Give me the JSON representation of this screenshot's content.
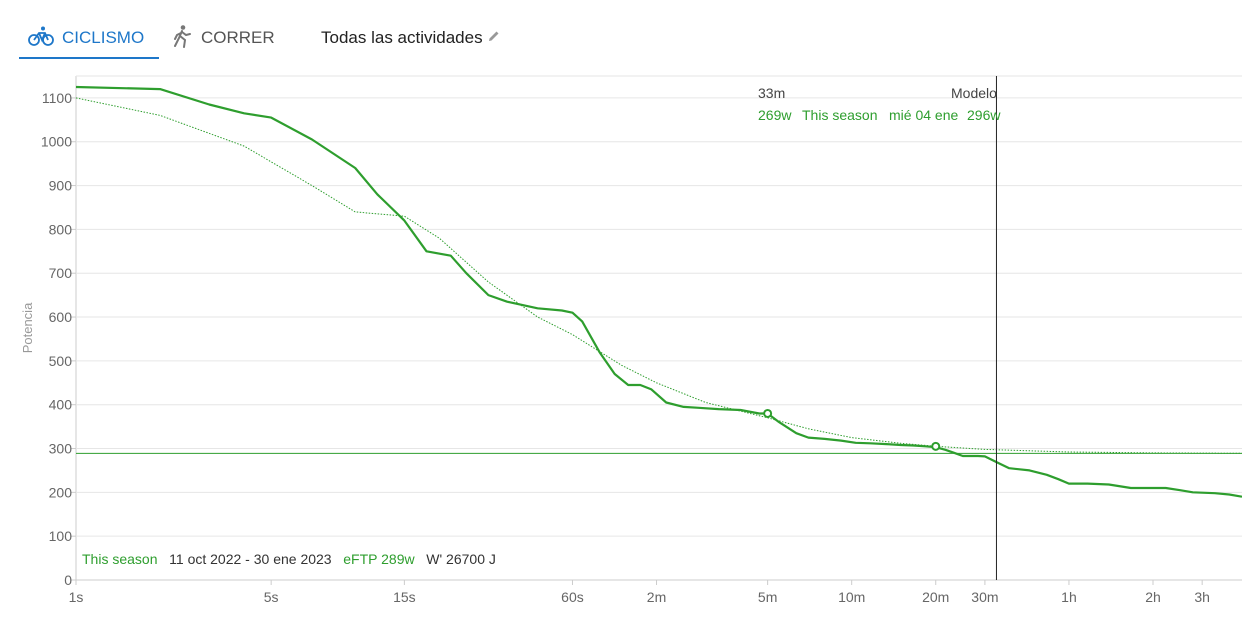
{
  "tabs": [
    {
      "label": "CICLISMO",
      "icon": "bike-icon",
      "active": true
    },
    {
      "label": "CORRER",
      "icon": "runner-icon",
      "active": false
    }
  ],
  "filter": {
    "label": "Todas las actividades",
    "icon": "pencil-icon"
  },
  "tooltip": {
    "time": "33m",
    "model_label": "Modelo",
    "value": "269w",
    "series": "This season",
    "date": "mié 04 ene",
    "model_value": "296w"
  },
  "footer": {
    "series": "This season",
    "range": "11 oct 2022 - 30 ene 2023",
    "eftp": "eFTP 289w",
    "wprime": "W' 26700 J"
  },
  "colors": {
    "accent": "#1e77c9",
    "series": "#2e9e2e",
    "grid": "#e6e6e6"
  },
  "chart_data": {
    "type": "line",
    "ylabel": "Potencia",
    "ylim": [
      0,
      1150
    ],
    "yticks": [
      0,
      100,
      200,
      300,
      400,
      500,
      600,
      700,
      800,
      900,
      1000,
      1100
    ],
    "xscale": "log",
    "xlim_seconds": [
      1,
      15000
    ],
    "xticks": [
      {
        "label": "1s",
        "s": 1
      },
      {
        "label": "5s",
        "s": 5
      },
      {
        "label": "15s",
        "s": 15
      },
      {
        "label": "60s",
        "s": 60
      },
      {
        "label": "2m",
        "s": 120
      },
      {
        "label": "5m",
        "s": 300
      },
      {
        "label": "10m",
        "s": 600
      },
      {
        "label": "20m",
        "s": 1200
      },
      {
        "label": "30m",
        "s": 1800
      },
      {
        "label": "1h",
        "s": 3600
      },
      {
        "label": "2h",
        "s": 7200
      },
      {
        "label": "3h",
        "s": 10800
      }
    ],
    "cursor_seconds": 1980,
    "eftp_line": 289,
    "series": [
      {
        "name": "This season",
        "style": "solid",
        "points": [
          [
            1,
            1125
          ],
          [
            2,
            1120
          ],
          [
            3,
            1085
          ],
          [
            4,
            1065
          ],
          [
            5,
            1055
          ],
          [
            7,
            1005
          ],
          [
            10,
            940
          ],
          [
            12,
            880
          ],
          [
            15,
            820
          ],
          [
            18,
            750
          ],
          [
            22,
            740
          ],
          [
            25,
            700
          ],
          [
            30,
            650
          ],
          [
            35,
            635
          ],
          [
            45,
            620
          ],
          [
            55,
            615
          ],
          [
            60,
            610
          ],
          [
            65,
            590
          ],
          [
            75,
            520
          ],
          [
            85,
            470
          ],
          [
            95,
            445
          ],
          [
            105,
            445
          ],
          [
            115,
            435
          ],
          [
            130,
            405
          ],
          [
            150,
            395
          ],
          [
            170,
            393
          ],
          [
            200,
            390
          ],
          [
            240,
            388
          ],
          [
            280,
            380
          ],
          [
            300,
            380
          ],
          [
            330,
            360
          ],
          [
            380,
            335
          ],
          [
            420,
            325
          ],
          [
            480,
            322
          ],
          [
            550,
            318
          ],
          [
            620,
            313
          ],
          [
            700,
            312
          ],
          [
            800,
            310
          ],
          [
            900,
            308
          ],
          [
            1000,
            307
          ],
          [
            1100,
            305
          ],
          [
            1200,
            303
          ],
          [
            1300,
            297
          ],
          [
            1400,
            290
          ],
          [
            1500,
            283
          ],
          [
            1700,
            283
          ],
          [
            1800,
            282
          ],
          [
            1980,
            269
          ],
          [
            2200,
            255
          ],
          [
            2600,
            250
          ],
          [
            3000,
            240
          ],
          [
            3300,
            230
          ],
          [
            3600,
            220
          ],
          [
            4200,
            220
          ],
          [
            5000,
            218
          ],
          [
            6000,
            210
          ],
          [
            7000,
            210
          ],
          [
            8000,
            210
          ],
          [
            9000,
            205
          ],
          [
            10000,
            200
          ],
          [
            12000,
            198
          ],
          [
            13500,
            195
          ],
          [
            15000,
            190
          ]
        ]
      },
      {
        "name": "Modelo",
        "style": "dotted",
        "points": [
          [
            1,
            1100
          ],
          [
            2,
            1060
          ],
          [
            4,
            990
          ],
          [
            7,
            900
          ],
          [
            10,
            840
          ],
          [
            15,
            830
          ],
          [
            20,
            780
          ],
          [
            30,
            680
          ],
          [
            45,
            600
          ],
          [
            60,
            560
          ],
          [
            90,
            490
          ],
          [
            120,
            450
          ],
          [
            180,
            405
          ],
          [
            300,
            370
          ],
          [
            420,
            345
          ],
          [
            600,
            325
          ],
          [
            900,
            312
          ],
          [
            1200,
            305
          ],
          [
            1800,
            298
          ],
          [
            3600,
            292
          ],
          [
            7200,
            290
          ],
          [
            15000,
            289
          ]
        ]
      }
    ],
    "markers": [
      {
        "s": 300,
        "value": 380
      },
      {
        "s": 1200,
        "value": 305
      }
    ]
  }
}
